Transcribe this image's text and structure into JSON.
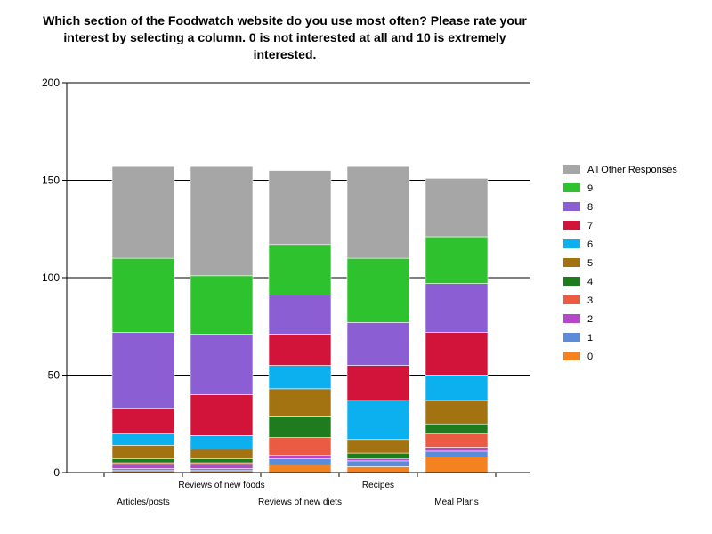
{
  "chart_data": {
    "type": "bar",
    "stacked": true,
    "title": "Which section of the Foodwatch website do you use most often? Please rate your interest by selecting a column.  0 is not interested at all and 10 is extremely interested.",
    "xlabel": "",
    "ylabel": "",
    "ylim": [
      0,
      200
    ],
    "yticks": [
      0,
      50,
      100,
      150,
      200
    ],
    "grid": true,
    "legend_position": "right",
    "categories": [
      "Articles/posts",
      "Reviews of new foods",
      "Reviews of new diets",
      "Recipes",
      "Meal Plans"
    ],
    "series": [
      {
        "name": "0",
        "color": "#f58220",
        "values": [
          1,
          1,
          4,
          3,
          8
        ]
      },
      {
        "name": "1",
        "color": "#5b8bd9",
        "values": [
          1,
          1,
          3,
          3,
          3
        ]
      },
      {
        "name": "2",
        "color": "#b547c9",
        "values": [
          2,
          2,
          2,
          1,
          2
        ]
      },
      {
        "name": "3",
        "color": "#eb5b44",
        "values": [
          1,
          1,
          9,
          0,
          7
        ]
      },
      {
        "name": "4",
        "color": "#1e7b1e",
        "values": [
          2,
          2,
          11,
          3,
          5
        ]
      },
      {
        "name": "5",
        "color": "#a37311",
        "values": [
          7,
          5,
          14,
          7,
          12
        ]
      },
      {
        "name": "6",
        "color": "#0cb0ee",
        "values": [
          6,
          7,
          12,
          20,
          13
        ]
      },
      {
        "name": "7",
        "color": "#d3143a",
        "values": [
          13,
          21,
          16,
          18,
          22
        ]
      },
      {
        "name": "8",
        "color": "#8b5fd3",
        "values": [
          39,
          31,
          20,
          22,
          25
        ]
      },
      {
        "name": "9",
        "color": "#2ec32e",
        "values": [
          38,
          30,
          26,
          33,
          24
        ]
      },
      {
        "name": "All Other Responses",
        "color": "#a6a6a6",
        "values": [
          47,
          56,
          38,
          47,
          30
        ]
      }
    ]
  }
}
